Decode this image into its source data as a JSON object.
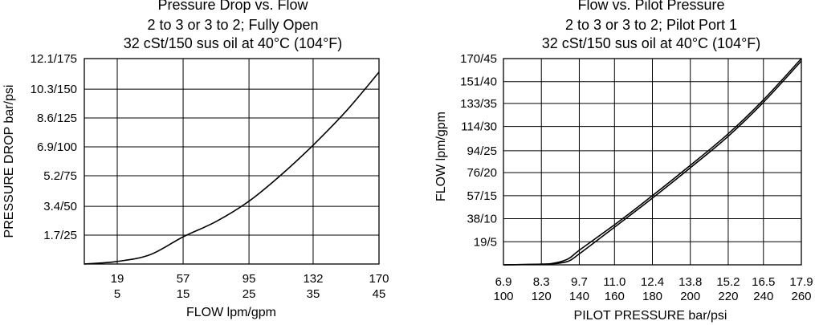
{
  "chart_data": [
    {
      "type": "line",
      "title": "Pressure Drop vs. Flow",
      "subtitle": [
        "2 to 3 or 3 to 2; Fully Open",
        "32 cSt/150 sus oil at 40°C (104°F)"
      ],
      "xlabel": "FLOW lpm/gpm",
      "ylabel": "PRESSURE DROP bar/psi",
      "xlim": [
        0,
        170
      ],
      "ylim": [
        0,
        12.1
      ],
      "grid": true,
      "x_ticks": [
        {
          "value": 19,
          "label1": "19",
          "label2": "5"
        },
        {
          "value": 57,
          "label1": "57",
          "label2": "15"
        },
        {
          "value": 95,
          "label1": "95",
          "label2": "25"
        },
        {
          "value": 132,
          "label1": "132",
          "label2": "35"
        },
        {
          "value": 170,
          "label1": "170",
          "label2": "45"
        }
      ],
      "y_ticks": [
        {
          "value": 1.7,
          "label": "1.7/25"
        },
        {
          "value": 3.4,
          "label": "3.4/50"
        },
        {
          "value": 5.2,
          "label": "5.2/75"
        },
        {
          "value": 6.9,
          "label": "6.9/100"
        },
        {
          "value": 8.6,
          "label": "8.6/125"
        },
        {
          "value": 10.3,
          "label": "10.3/150"
        },
        {
          "value": 12.1,
          "label": "12.1/175"
        }
      ],
      "series": [
        {
          "x": [
            0,
            19,
            38,
            57,
            76,
            95,
            113,
            132,
            151,
            170
          ],
          "y": [
            0,
            0.15,
            0.55,
            1.6,
            2.5,
            3.7,
            5.2,
            7.0,
            9.0,
            11.3
          ]
        }
      ]
    },
    {
      "type": "line",
      "title": "Flow vs. Pilot Pressure",
      "subtitle": [
        "2 to 3 or 3 to 2; Pilot Port 1",
        "32 cSt/150 sus oil at 40°C (104°F)"
      ],
      "xlabel": "PILOT PRESSURE bar/psi",
      "ylabel": "FLOW lpm/gpm",
      "xlim": [
        6.9,
        17.9
      ],
      "ylim": [
        0,
        170
      ],
      "grid": true,
      "x_ticks": [
        {
          "value": 6.9,
          "label1": "6.9",
          "label2": "100"
        },
        {
          "value": 8.3,
          "label1": "8.3",
          "label2": "120"
        },
        {
          "value": 9.7,
          "label1": "9.7",
          "label2": "140"
        },
        {
          "value": 11.0,
          "label1": "11.0",
          "label2": "160"
        },
        {
          "value": 12.4,
          "label1": "12.4",
          "label2": "180"
        },
        {
          "value": 13.8,
          "label1": "13.8",
          "label2": "200"
        },
        {
          "value": 15.2,
          "label1": "15.2",
          "label2": "220"
        },
        {
          "value": 16.5,
          "label1": "16.5",
          "label2": "240"
        },
        {
          "value": 17.9,
          "label1": "17.9",
          "label2": "260"
        }
      ],
      "y_ticks": [
        {
          "value": 19,
          "label": "19/5"
        },
        {
          "value": 38,
          "label": "38/10"
        },
        {
          "value": 57,
          "label": "57/15"
        },
        {
          "value": 76,
          "label": "76/20"
        },
        {
          "value": 94,
          "label": "94/25"
        },
        {
          "value": 114,
          "label": "114/30"
        },
        {
          "value": 133,
          "label": "133/35"
        },
        {
          "value": 151,
          "label": "151/40"
        },
        {
          "value": 170,
          "label": "170/45"
        }
      ],
      "series": [
        {
          "x": [
            6.9,
            8.3,
            8.8,
            9.3,
            9.7,
            11.0,
            12.4,
            13.8,
            15.2,
            16.5,
            17.9
          ],
          "y": [
            0,
            0.5,
            1.5,
            5,
            12,
            33,
            57,
            82,
            108,
            136,
            170
          ]
        },
        {
          "x": [
            6.9,
            8.3,
            8.8,
            9.3,
            9.7,
            11.0,
            12.4,
            13.8,
            15.2,
            16.5,
            17.9
          ],
          "y": [
            0,
            0.5,
            1,
            3,
            9,
            31,
            55,
            80,
            106,
            134,
            168
          ]
        }
      ]
    }
  ]
}
